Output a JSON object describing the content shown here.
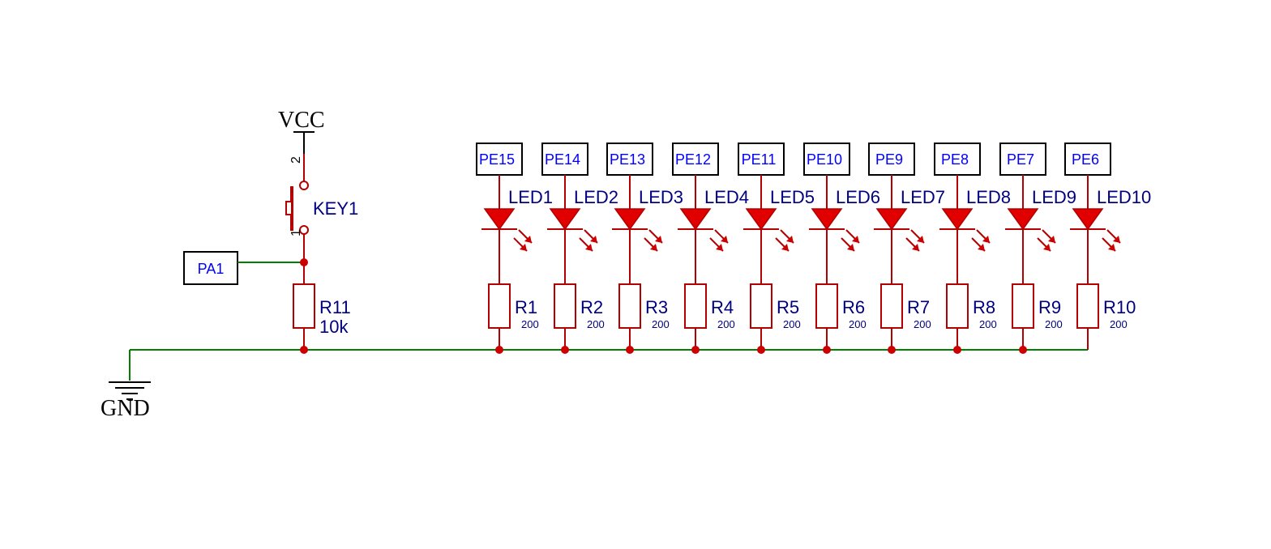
{
  "power": {
    "vcc": "VCC",
    "gnd": "GND"
  },
  "switch": {
    "designator": "KEY1",
    "pin1": "1",
    "pin2": "2"
  },
  "input_port": {
    "label": "PA1"
  },
  "pulldown": {
    "designator": "R11",
    "value": "10k"
  },
  "colors": {
    "wire": "#b30000",
    "ground_wire": "#008000",
    "led_fill": "#e00000",
    "net_label": "#0000ff",
    "designator": "#000080"
  },
  "channels": [
    {
      "port": "PE15",
      "led": "LED1",
      "resistor": "R1",
      "value": "200"
    },
    {
      "port": "PE14",
      "led": "LED2",
      "resistor": "R2",
      "value": "200"
    },
    {
      "port": "PE13",
      "led": "LED3",
      "resistor": "R3",
      "value": "200"
    },
    {
      "port": "PE12",
      "led": "LED4",
      "resistor": "R4",
      "value": "200"
    },
    {
      "port": "PE11",
      "led": "LED5",
      "resistor": "R5",
      "value": "200"
    },
    {
      "port": "PE10",
      "led": "LED6",
      "resistor": "R6",
      "value": "200"
    },
    {
      "port": "PE9",
      "led": "LED7",
      "resistor": "R7",
      "value": "200"
    },
    {
      "port": "PE8",
      "led": "LED8",
      "resistor": "R8",
      "value": "200"
    },
    {
      "port": "PE7",
      "led": "LED9",
      "resistor": "R9",
      "value": "200"
    },
    {
      "port": "PE6",
      "led": "LED10",
      "resistor": "R10",
      "value": "200"
    }
  ]
}
